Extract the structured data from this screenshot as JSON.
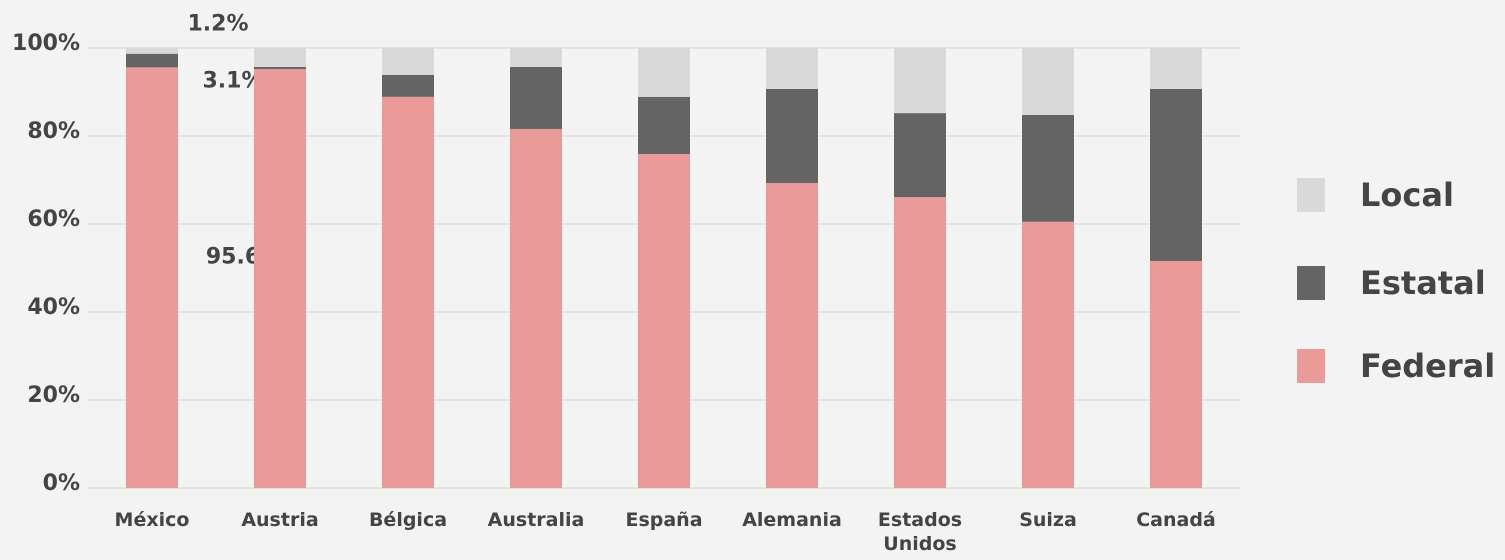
{
  "chart_data": {
    "type": "stacked_bar",
    "categories": [
      "México",
      "Austria",
      "Bélgica",
      "Australia",
      "España",
      "Alemania",
      "Estados Unidos",
      "Suiza",
      "Canadá"
    ],
    "series": [
      {
        "name": "Federal",
        "color": "#eb9a9a",
        "values": [
          95.6,
          95.2,
          88.9,
          81.6,
          75.9,
          69.3,
          66.1,
          60.5,
          51.6
        ],
        "value_labels": [
          "95.6",
          null,
          null,
          null,
          null,
          null,
          null,
          null,
          null
        ]
      },
      {
        "name": "Estatal",
        "color": "#646464",
        "values": [
          3.1,
          0.5,
          5.0,
          14.1,
          13.0,
          21.4,
          19.1,
          24.3,
          39.1
        ],
        "value_labels": [
          "3.1%",
          null,
          null,
          null,
          null,
          null,
          null,
          null,
          null
        ]
      },
      {
        "name": "Local",
        "color": "#d9d9d9",
        "values": [
          1.2,
          4.3,
          6.1,
          4.3,
          11.1,
          9.3,
          14.8,
          15.2,
          9.3
        ],
        "value_labels": [
          "1.2%",
          null,
          null,
          null,
          null,
          null,
          null,
          null,
          null
        ]
      }
    ],
    "ylim": [
      0,
      100
    ],
    "yticks": [
      {
        "value": 0,
        "label": "0%"
      },
      {
        "value": 20,
        "label": "20%"
      },
      {
        "value": 40,
        "label": "40%"
      },
      {
        "value": 60,
        "label": "60%"
      },
      {
        "value": 80,
        "label": "80%"
      },
      {
        "value": 100,
        "label": "100%"
      }
    ],
    "grid": true,
    "legend": "right"
  }
}
